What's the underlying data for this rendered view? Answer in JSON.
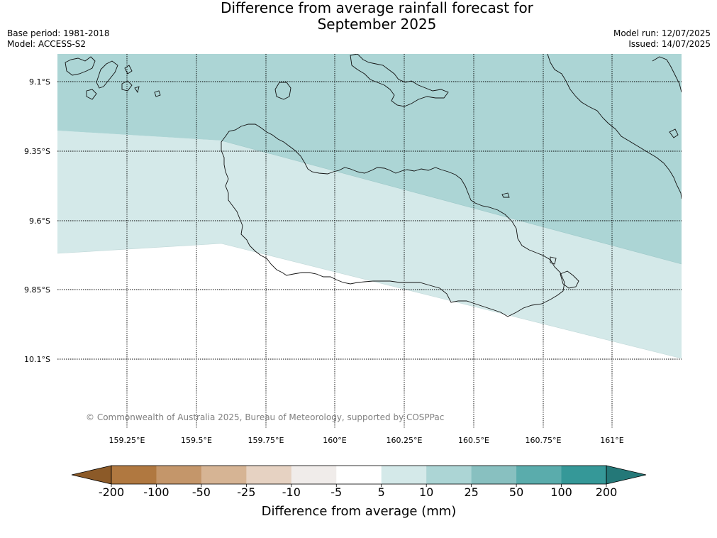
{
  "title_line1": "Difference from average rainfall forecast for",
  "title_line2": "September 2025",
  "base_period": "Base period: 1981-2018",
  "model": "Model: ACCESS-S2",
  "model_run": "Model run: 12/07/2025",
  "issued": "Issued: 14/07/2025",
  "credit": "© Commonwealth of Australia 2025, Bureau of Meteorology, supported by COSPPac",
  "map": {
    "lat_labels": [
      "9.1°S",
      "9.35°S",
      "9.6°S",
      "9.85°S",
      "10.1°S"
    ],
    "lon_labels": [
      "159.25°E",
      "159.5°E",
      "159.75°E",
      "160°E",
      "160.25°E",
      "160.5°E",
      "160.75°E",
      "161°E"
    ]
  },
  "colorbar": {
    "title": "Difference from average (mm)",
    "ticks": [
      "-200",
      "-100",
      "-50",
      "-25",
      "-10",
      "-5",
      "5",
      "10",
      "25",
      "50",
      "100",
      "200"
    ],
    "colors": [
      "#8c5a28",
      "#b07840",
      "#c4966a",
      "#d6b494",
      "#e6d2c2",
      "#f0ecea",
      "#ffffff",
      "#d4e9e9",
      "#acd5d5",
      "#88c0c0",
      "#5aacac",
      "#359898",
      "#247878"
    ]
  }
}
